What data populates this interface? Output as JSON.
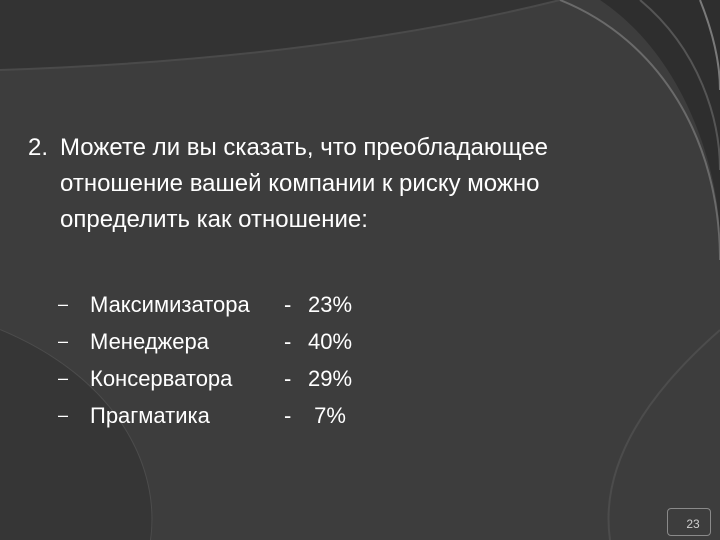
{
  "slide": {
    "question": {
      "number": "2.",
      "line1": "Можете ли вы сказать, что преобладающее",
      "line2": "отношение вашей компании к риску можно",
      "line3": "определить как отношение:"
    },
    "options": [
      {
        "bullet": "–",
        "label": "Максимизатора",
        "separator": "-",
        "value": "23%"
      },
      {
        "bullet": "–",
        "label": "Менеджера",
        "separator": "-",
        "value": "40%"
      },
      {
        "bullet": "–",
        "label": "Консерватора",
        "separator": "-",
        "value": "29%"
      },
      {
        "bullet": "–",
        "label": "Прагматика",
        "separator": "-",
        "value": " 7%"
      }
    ],
    "page_number": "23"
  },
  "colors": {
    "background": "#3d3d3d",
    "text": "#ffffff",
    "arc_light": "#6a6a6a",
    "arc_dark": "#262626"
  }
}
